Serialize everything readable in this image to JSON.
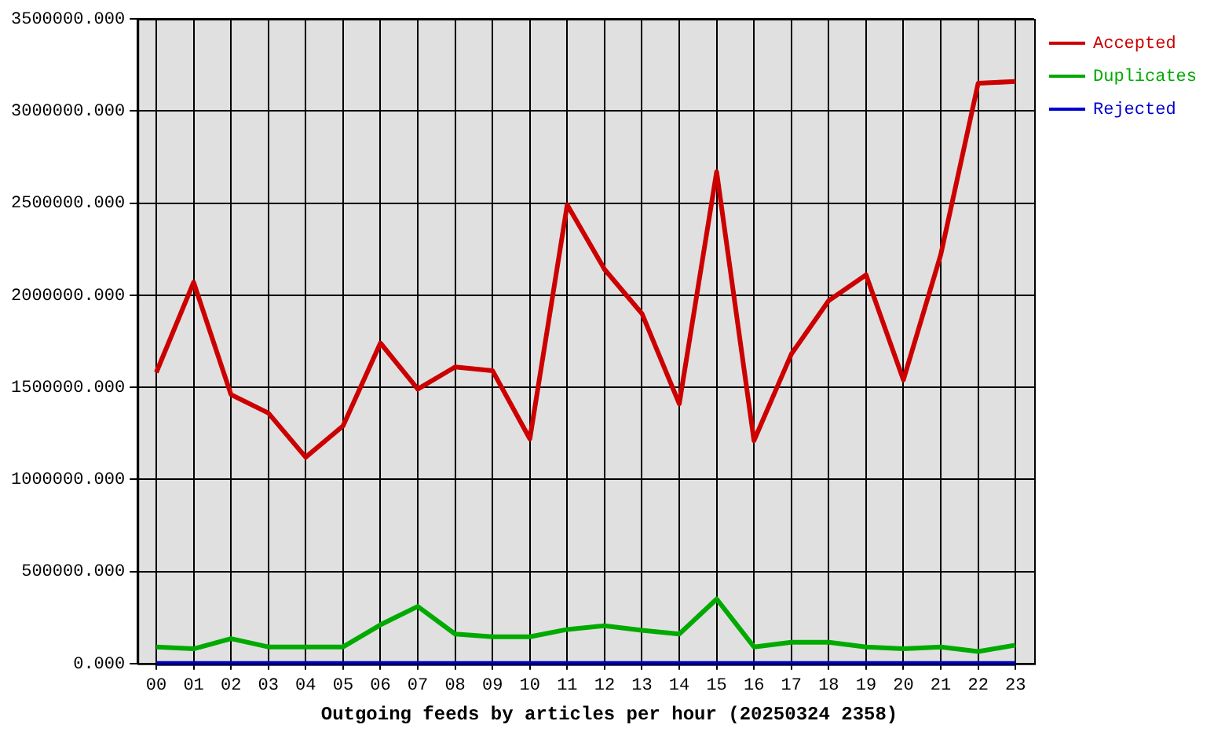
{
  "chart_data": {
    "type": "line",
    "title": "Outgoing feeds by articles per hour (20250324 2358)",
    "categories": [
      "00",
      "01",
      "02",
      "03",
      "04",
      "05",
      "06",
      "07",
      "08",
      "09",
      "10",
      "11",
      "12",
      "13",
      "14",
      "15",
      "16",
      "17",
      "18",
      "19",
      "20",
      "21",
      "22",
      "23"
    ],
    "series": [
      {
        "name": "Accepted",
        "color": "#cc0000",
        "values": [
          1580000,
          2070000,
          1460000,
          1360000,
          1120000,
          1290000,
          1740000,
          1490000,
          1610000,
          1590000,
          1220000,
          2490000,
          2140000,
          1900000,
          1410000,
          2670000,
          1210000,
          1680000,
          1970000,
          2110000,
          1540000,
          2220000,
          3150000,
          3160000
        ]
      },
      {
        "name": "Duplicates",
        "color": "#00aa00",
        "values": [
          90000,
          80000,
          135000,
          90000,
          90000,
          90000,
          210000,
          310000,
          160000,
          145000,
          145000,
          185000,
          205000,
          180000,
          160000,
          350000,
          90000,
          115000,
          115000,
          90000,
          80000,
          90000,
          65000,
          100000
        ]
      },
      {
        "name": "Rejected",
        "color": "#0000cc",
        "values": [
          0,
          0,
          0,
          0,
          0,
          0,
          0,
          0,
          0,
          0,
          0,
          0,
          0,
          0,
          0,
          0,
          0,
          0,
          0,
          0,
          0,
          0,
          0,
          0
        ]
      }
    ],
    "ylim": [
      0,
      3500000
    ],
    "yticks": [
      {
        "value": 0,
        "label": "0.000"
      },
      {
        "value": 500000,
        "label": "500000.000"
      },
      {
        "value": 1000000,
        "label": "1000000.000"
      },
      {
        "value": 1500000,
        "label": "1500000.000"
      },
      {
        "value": 2000000,
        "label": "2000000.000"
      },
      {
        "value": 2500000,
        "label": "2500000.000"
      },
      {
        "value": 3000000,
        "label": "3000000.000"
      },
      {
        "value": 3500000,
        "label": "3500000.000"
      }
    ],
    "grid": true,
    "legend": "top right",
    "line_style": "solid"
  }
}
